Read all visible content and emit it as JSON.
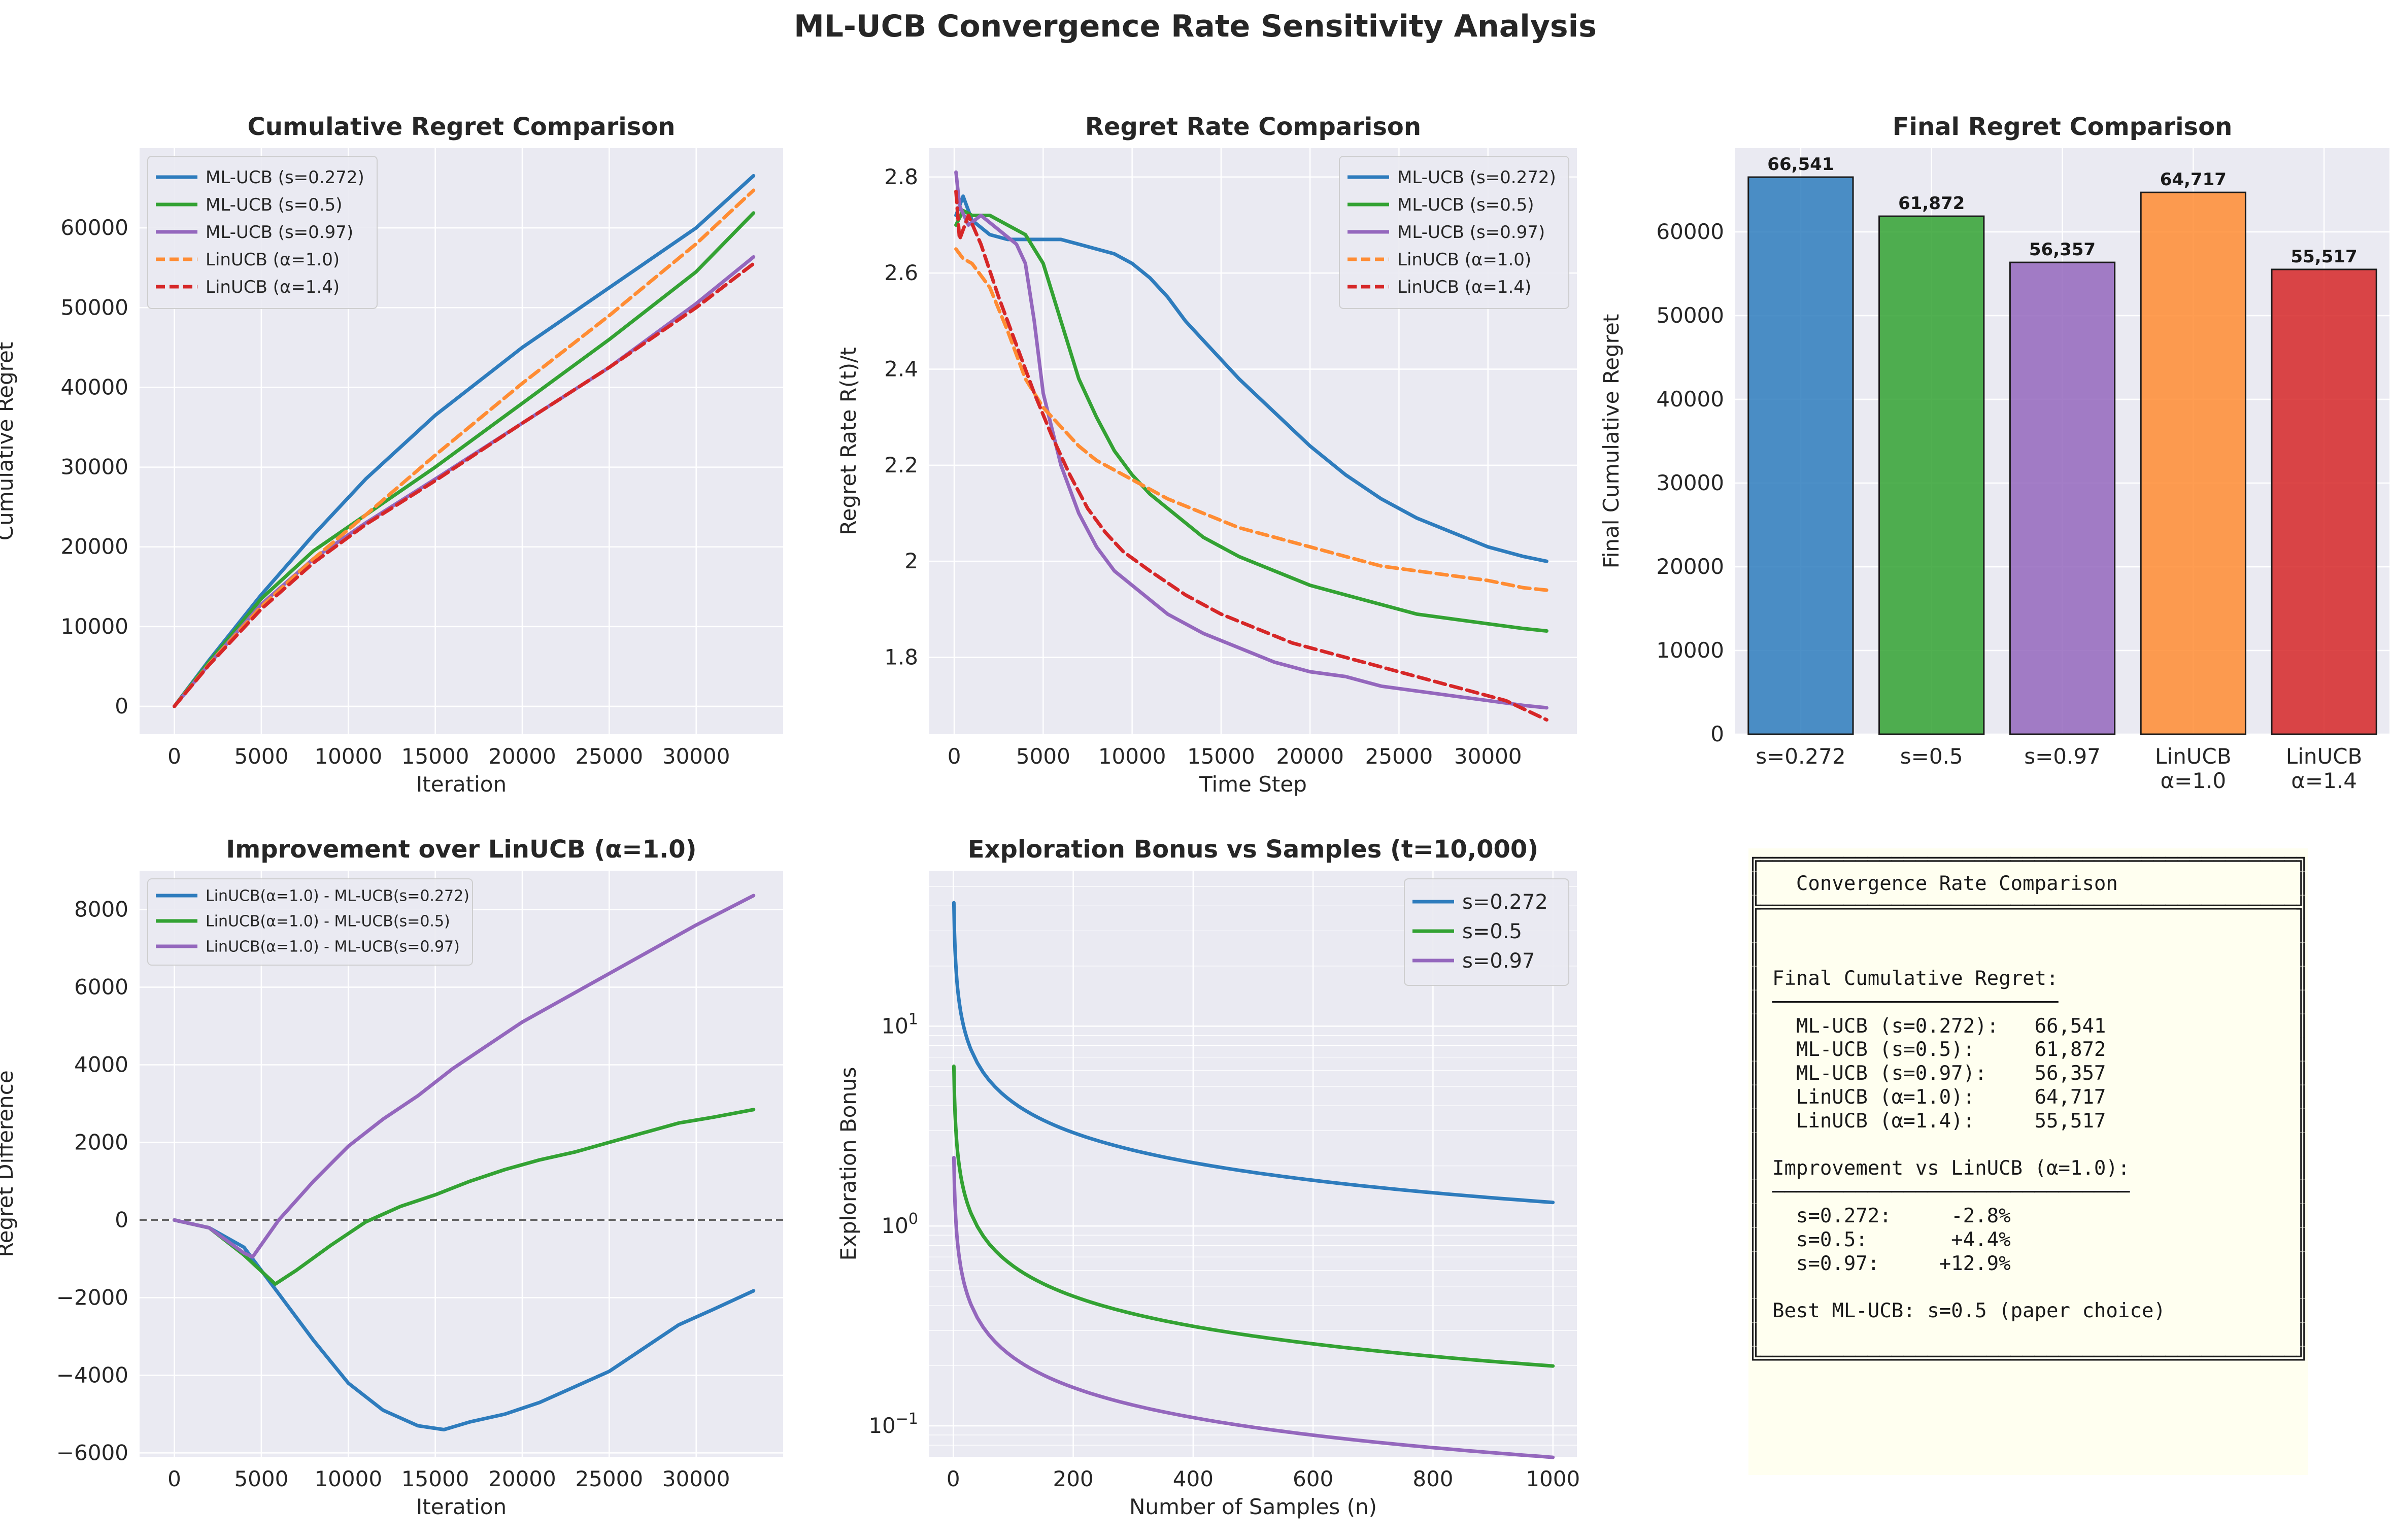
{
  "suptitle": "ML-UCB Convergence Rate Sensitivity Analysis",
  "colors": {
    "s0272": "#2e7cbd",
    "s05": "#33a233",
    "s097": "#9467bd",
    "linucb10": "#ff8c33",
    "linucb14": "#d62728",
    "panel_bg": "#eaeaf2",
    "grid": "#ffffff",
    "summary_bg": "#fffff0"
  },
  "chart_data": [
    {
      "type": "line",
      "title": "Cumulative Regret Comparison",
      "xlabel": "Iteration",
      "ylabel": "Cumulative Regret",
      "xlim": [
        -2000,
        35000
      ],
      "ylim": [
        -3500,
        70000
      ],
      "xticks": [
        0,
        5000,
        10000,
        15000,
        20000,
        25000,
        30000
      ],
      "yticks": [
        0,
        10000,
        20000,
        30000,
        40000,
        50000,
        60000
      ],
      "legend_position": "upper-left",
      "series": [
        {
          "name": "ML-UCB (s=0.272)",
          "style": "solid",
          "color_key": "s0272",
          "x": [
            0,
            2000,
            5000,
            8000,
            11000,
            15000,
            20000,
            25000,
            30000,
            33300
          ],
          "y": [
            0,
            5800,
            14000,
            21500,
            28500,
            36500,
            45000,
            52500,
            60000,
            66541
          ]
        },
        {
          "name": "ML-UCB (s=0.5)",
          "style": "solid",
          "color_key": "s05",
          "x": [
            0,
            2000,
            5000,
            8000,
            11000,
            15000,
            20000,
            25000,
            30000,
            33300
          ],
          "y": [
            0,
            5600,
            13500,
            19500,
            24000,
            30000,
            38000,
            46000,
            54500,
            61872
          ]
        },
        {
          "name": "ML-UCB (s=0.97)",
          "style": "solid",
          "color_key": "s097",
          "x": [
            0,
            2000,
            5000,
            8000,
            11000,
            15000,
            20000,
            25000,
            30000,
            33300
          ],
          "y": [
            0,
            5300,
            12800,
            18500,
            23000,
            28500,
            35500,
            42500,
            50500,
            56357
          ]
        },
        {
          "name": "LinUCB (α=1.0)",
          "style": "dashed",
          "color_key": "linucb10",
          "x": [
            0,
            2000,
            5000,
            8000,
            11000,
            15000,
            20000,
            25000,
            30000,
            33300
          ],
          "y": [
            0,
            5300,
            12500,
            18500,
            24000,
            31500,
            40500,
            49000,
            58000,
            64717
          ]
        },
        {
          "name": "LinUCB (α=1.4)",
          "style": "dashed",
          "color_key": "linucb14",
          "x": [
            0,
            2000,
            5000,
            8000,
            11000,
            15000,
            20000,
            25000,
            30000,
            33300
          ],
          "y": [
            0,
            5200,
            12200,
            18000,
            22800,
            28300,
            35500,
            42500,
            50000,
            55517
          ]
        }
      ]
    },
    {
      "type": "line",
      "title": "Regret Rate Comparison",
      "xlabel": "Time Step",
      "ylabel": "Regret Rate R(t)/t",
      "xlim": [
        -1400,
        35000
      ],
      "ylim": [
        1.64,
        2.86
      ],
      "xticks": [
        0,
        5000,
        10000,
        15000,
        20000,
        25000,
        30000
      ],
      "yticks": [
        1.8,
        2.0,
        2.2,
        2.4,
        2.6,
        2.8
      ],
      "legend_position": "upper-right",
      "series": [
        {
          "name": "ML-UCB (s=0.272)",
          "style": "solid",
          "color_key": "s0272",
          "x": [
            100,
            500,
            1000,
            2000,
            3000,
            4000,
            5000,
            6000,
            7000,
            8000,
            9000,
            10000,
            11000,
            12000,
            13000,
            14000,
            16000,
            18000,
            20000,
            22000,
            24000,
            26000,
            28000,
            30000,
            32000,
            33300
          ],
          "y": [
            2.72,
            2.76,
            2.71,
            2.68,
            2.67,
            2.67,
            2.67,
            2.67,
            2.66,
            2.65,
            2.64,
            2.62,
            2.59,
            2.55,
            2.5,
            2.46,
            2.38,
            2.31,
            2.24,
            2.18,
            2.13,
            2.09,
            2.06,
            2.03,
            2.01,
            2.0
          ]
        },
        {
          "name": "ML-UCB (s=0.5)",
          "style": "solid",
          "color_key": "s05",
          "x": [
            100,
            500,
            1000,
            2000,
            3000,
            4000,
            5000,
            6000,
            7000,
            8000,
            9000,
            10000,
            11000,
            12000,
            14000,
            16000,
            18000,
            20000,
            22000,
            24000,
            26000,
            28000,
            30000,
            32000,
            33300
          ],
          "y": [
            2.7,
            2.73,
            2.72,
            2.72,
            2.7,
            2.68,
            2.62,
            2.5,
            2.38,
            2.3,
            2.23,
            2.18,
            2.14,
            2.11,
            2.05,
            2.01,
            1.98,
            1.95,
            1.93,
            1.91,
            1.89,
            1.88,
            1.87,
            1.86,
            1.855
          ]
        },
        {
          "name": "ML-UCB (s=0.97)",
          "style": "solid",
          "color_key": "s097",
          "x": [
            100,
            300,
            800,
            1500,
            2500,
            3500,
            4000,
            4500,
            5000,
            6000,
            7000,
            8000,
            9000,
            10000,
            12000,
            14000,
            16000,
            18000,
            20000,
            22000,
            24000,
            26000,
            28000,
            30000,
            32000,
            33300
          ],
          "y": [
            2.81,
            2.74,
            2.7,
            2.72,
            2.69,
            2.66,
            2.62,
            2.5,
            2.35,
            2.2,
            2.1,
            2.03,
            1.98,
            1.95,
            1.89,
            1.85,
            1.82,
            1.79,
            1.77,
            1.76,
            1.74,
            1.73,
            1.72,
            1.71,
            1.7,
            1.695
          ]
        },
        {
          "name": "LinUCB (α=1.0)",
          "style": "dashed",
          "color_key": "linucb10",
          "x": [
            100,
            500,
            1000,
            2000,
            3000,
            4000,
            5000,
            6000,
            7000,
            8000,
            9000,
            10000,
            12000,
            14000,
            16000,
            18000,
            20000,
            22000,
            24000,
            26000,
            28000,
            30000,
            32000,
            33300
          ],
          "y": [
            2.65,
            2.63,
            2.62,
            2.57,
            2.48,
            2.38,
            2.32,
            2.28,
            2.24,
            2.21,
            2.19,
            2.17,
            2.13,
            2.1,
            2.07,
            2.05,
            2.03,
            2.01,
            1.99,
            1.98,
            1.97,
            1.96,
            1.945,
            1.94
          ]
        },
        {
          "name": "LinUCB (α=1.4)",
          "style": "dashed",
          "color_key": "linucb14",
          "x": [
            100,
            300,
            800,
            1500,
            2500,
            3500,
            4500,
            5500,
            6500,
            7500,
            8500,
            9500,
            11000,
            13000,
            15000,
            17000,
            19000,
            21000,
            23000,
            25000,
            27000,
            29000,
            31000,
            33300
          ],
          "y": [
            2.77,
            2.67,
            2.72,
            2.66,
            2.55,
            2.45,
            2.35,
            2.26,
            2.18,
            2.11,
            2.06,
            2.02,
            1.98,
            1.93,
            1.89,
            1.86,
            1.83,
            1.81,
            1.79,
            1.77,
            1.75,
            1.73,
            1.71,
            1.67
          ]
        }
      ]
    },
    {
      "type": "bar",
      "title": "Final Regret Comparison",
      "xlabel": "",
      "ylabel": "Final Cumulative Regret",
      "ylim": [
        0,
        70000
      ],
      "yticks": [
        0,
        10000,
        20000,
        30000,
        40000,
        50000,
        60000
      ],
      "categories": [
        "s=0.272",
        "s=0.5",
        "s=0.97",
        "LinUCB\nα=1.0",
        "LinUCB\nα=1.4"
      ],
      "values": [
        66541,
        61872,
        56357,
        64717,
        55517
      ],
      "value_labels": [
        "66,541",
        "61,872",
        "56,357",
        "64,717",
        "55,517"
      ],
      "color_keys": [
        "s0272",
        "s05",
        "s097",
        "linucb10",
        "linucb14"
      ]
    },
    {
      "type": "line",
      "title": "Improvement over LinUCB (α=1.0)",
      "xlabel": "Iteration",
      "ylabel": "Regret Difference",
      "xlim": [
        -2000,
        35000
      ],
      "ylim": [
        -6100,
        9000
      ],
      "xticks": [
        0,
        5000,
        10000,
        15000,
        20000,
        25000,
        30000
      ],
      "yticks": [
        -6000,
        -4000,
        -2000,
        0,
        2000,
        4000,
        6000,
        8000
      ],
      "reference_line_y": 0,
      "legend_position": "upper-left",
      "series": [
        {
          "name": "LinUCB(α=1.0) - ML-UCB(s=0.272)",
          "style": "solid",
          "color_key": "s0272",
          "x": [
            0,
            2000,
            4000,
            6000,
            8000,
            10000,
            12000,
            14000,
            15500,
            17000,
            19000,
            21000,
            23000,
            25000,
            27000,
            29000,
            31000,
            33300
          ],
          "y": [
            0,
            -200,
            -700,
            -1900,
            -3100,
            -4200,
            -4900,
            -5300,
            -5400,
            -5200,
            -5000,
            -4700,
            -4300,
            -3900,
            -3300,
            -2700,
            -2300,
            -1824
          ]
        },
        {
          "name": "LinUCB(α=1.0) - ML-UCB(s=0.5)",
          "style": "solid",
          "color_key": "s05",
          "x": [
            0,
            2000,
            4000,
            5800,
            7000,
            9000,
            11000,
            13000,
            15000,
            17000,
            19000,
            21000,
            23000,
            25000,
            27000,
            29000,
            31000,
            33300
          ],
          "y": [
            0,
            -200,
            -900,
            -1650,
            -1300,
            -650,
            -50,
            350,
            650,
            1000,
            1300,
            1550,
            1750,
            2000,
            2250,
            2500,
            2650,
            2845
          ]
        },
        {
          "name": "LinUCB(α=1.0) - ML-UCB(s=0.97)",
          "style": "solid",
          "color_key": "s097",
          "x": [
            0,
            2000,
            4000,
            4500,
            6000,
            8000,
            10000,
            12000,
            14000,
            16000,
            18000,
            20000,
            22000,
            24000,
            26000,
            28000,
            30000,
            33300
          ],
          "y": [
            0,
            -200,
            -850,
            -950,
            0,
            1000,
            1900,
            2600,
            3200,
            3900,
            4500,
            5100,
            5600,
            6100,
            6600,
            7100,
            7600,
            8360
          ]
        }
      ]
    },
    {
      "type": "line",
      "title": "Exploration Bonus vs Samples (t=10,000)",
      "xlabel": "Number of Samples (n)",
      "ylabel": "Exploration Bonus",
      "xscale": "linear",
      "yscale": "log",
      "xlim": [
        -40,
        1040
      ],
      "ylim": [
        0.07,
        60
      ],
      "xticks": [
        0,
        200,
        400,
        600,
        800,
        1000
      ],
      "yticks": [
        0.1,
        1,
        10
      ],
      "ytick_labels": [
        {
          "base": "10",
          "exp": "−1"
        },
        {
          "base": "10",
          "exp": "0"
        },
        {
          "base": "10",
          "exp": "1"
        }
      ],
      "legend_position": "upper-right",
      "series": [
        {
          "name": "s=0.272",
          "style": "solid",
          "color_key": "s0272",
          "formula": "41.5 / sqrt(n)"
        },
        {
          "name": "s=0.5",
          "style": "solid",
          "color_key": "s05",
          "formula": "6.3 / sqrt(n)"
        },
        {
          "name": "s=0.97",
          "style": "solid",
          "color_key": "s097",
          "formula": "2.2 / sqrt(n)"
        }
      ]
    }
  ],
  "summary": {
    "title": "Convergence Rate Comparison",
    "final_header": "Final Cumulative Regret:",
    "final_rows": [
      {
        "label": "ML-UCB (s=0.272):",
        "value": "66,541"
      },
      {
        "label": "ML-UCB (s=0.5):",
        "value": "61,872"
      },
      {
        "label": "ML-UCB (s=0.97):",
        "value": "56,357"
      },
      {
        "label": "LinUCB (α=1.0):",
        "value": "64,717"
      },
      {
        "label": "LinUCB (α=1.4):",
        "value": "55,517"
      }
    ],
    "improvement_header": "Improvement vs LinUCB (α=1.0):",
    "improvement_rows": [
      {
        "label": "s=0.272:",
        "value": "-2.8%"
      },
      {
        "label": "s=0.5:",
        "value": "+4.4%"
      },
      {
        "label": "s=0.97:",
        "value": "+12.9%"
      }
    ],
    "best": "Best ML-UCB: s=0.5 (paper choice)"
  }
}
